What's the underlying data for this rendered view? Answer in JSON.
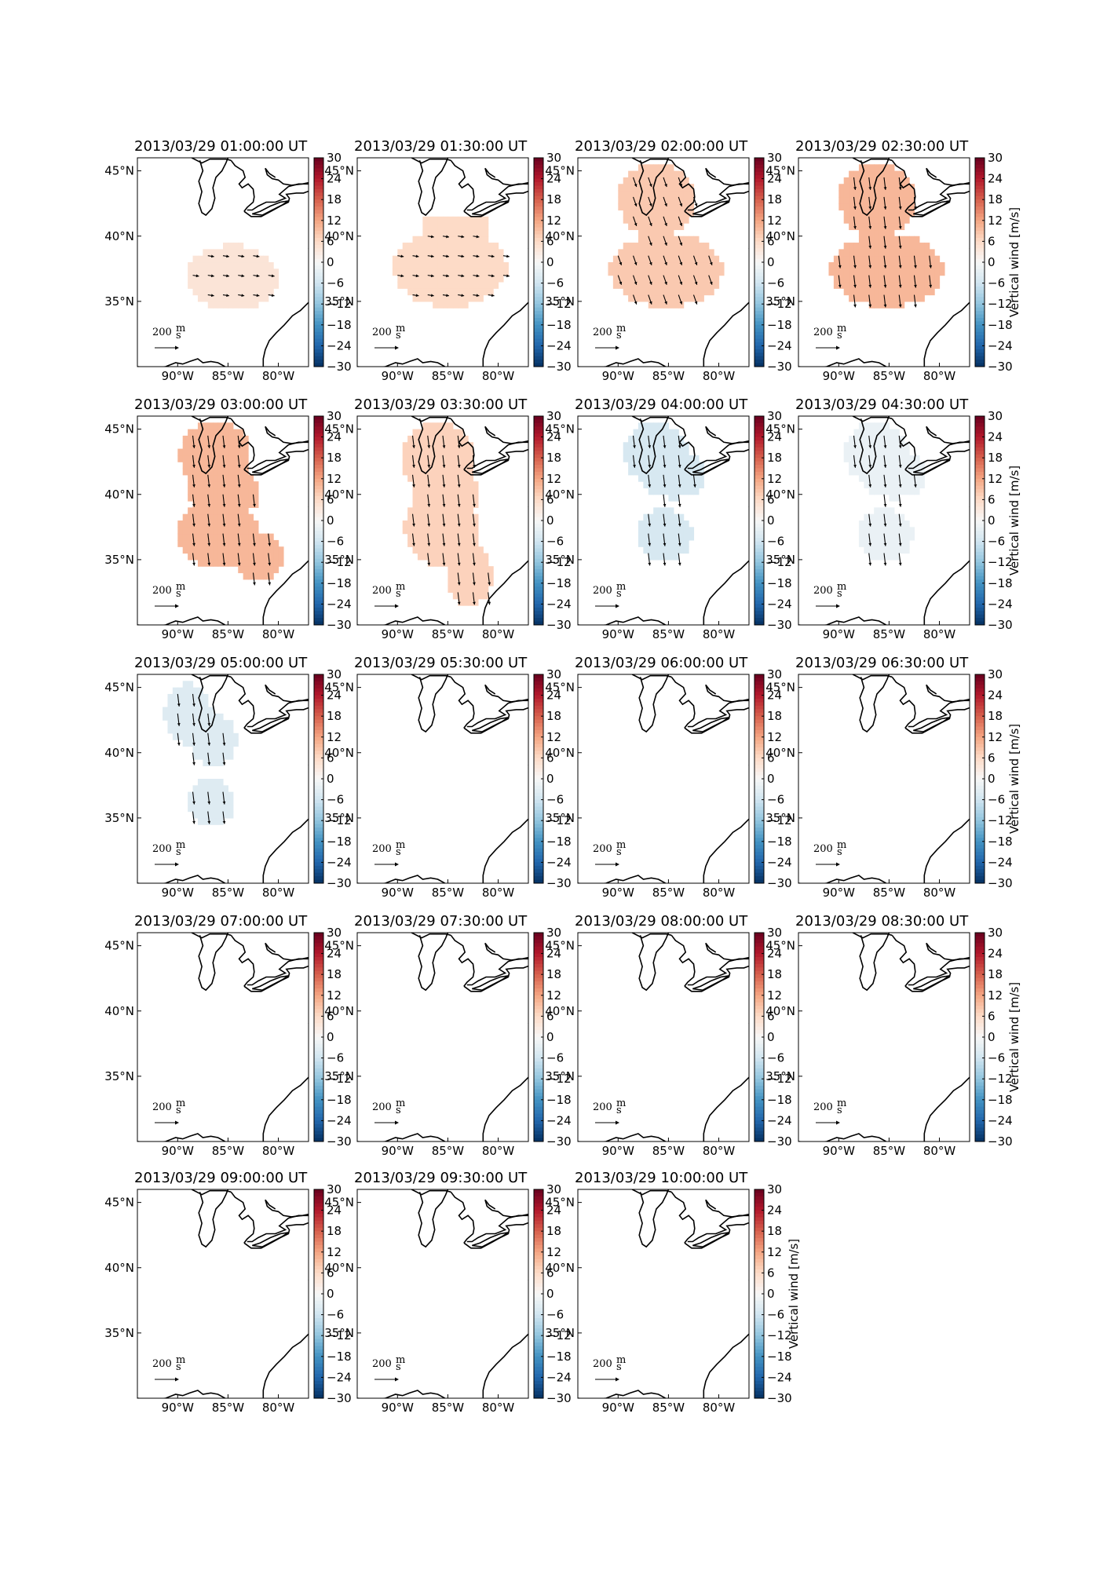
{
  "chart_data": {
    "type": "heatmap",
    "description_free": true,
    "panels": [
      {
        "title": "2013/03/29 01:00:00 UT",
        "fill_value": 4,
        "region": "south_blob_small",
        "arrows": "east",
        "arrow_len": 0.5
      },
      {
        "title": "2013/03/29 01:30:00 UT",
        "fill_value": 6,
        "region": "southeast_large",
        "arrows": "east",
        "arrow_len": 0.5
      },
      {
        "title": "2013/03/29 02:00:00 UT",
        "fill_value": 8,
        "region": "two_blobs",
        "arrows": "southeast",
        "arrow_len": 0.8
      },
      {
        "title": "2013/03/29 02:30:00 UT",
        "fill_value": 10,
        "region": "two_blobs",
        "arrows": "south",
        "arrow_len": 1.0
      },
      {
        "title": "2013/03/29 03:00:00 UT",
        "fill_value": 10,
        "region": "hourglass",
        "arrows": "south",
        "arrow_len": 1.0
      },
      {
        "title": "2013/03/29 03:30:00 UT",
        "fill_value": 7,
        "region": "hourglass_tall",
        "arrows": "south",
        "arrow_len": 1.0
      },
      {
        "title": "2013/03/29 04:00:00 UT",
        "fill_value": -5,
        "region": "west_column",
        "arrows": "south",
        "arrow_len": 1.0
      },
      {
        "title": "2013/03/29 04:30:00 UT",
        "fill_value": -2,
        "region": "west_column",
        "arrows": "south",
        "arrow_len": 1.0
      },
      {
        "title": "2013/03/29 05:00:00 UT",
        "fill_value": -4,
        "region": "west_column_small",
        "arrows": "south",
        "arrow_len": 1.0
      },
      {
        "title": "2013/03/29 05:30:00 UT",
        "fill_value": null
      },
      {
        "title": "2013/03/29 06:00:00 UT",
        "fill_value": null
      },
      {
        "title": "2013/03/29 06:30:00 UT",
        "fill_value": null
      },
      {
        "title": "2013/03/29 07:00:00 UT",
        "fill_value": null
      },
      {
        "title": "2013/03/29 07:30:00 UT",
        "fill_value": null
      },
      {
        "title": "2013/03/29 08:00:00 UT",
        "fill_value": null
      },
      {
        "title": "2013/03/29 08:30:00 UT",
        "fill_value": null
      },
      {
        "title": "2013/03/29 09:00:00 UT",
        "fill_value": null
      },
      {
        "title": "2013/03/29 09:30:00 UT",
        "fill_value": null
      },
      {
        "title": "2013/03/29 10:00:00 UT",
        "fill_value": null
      }
    ],
    "x_ticks": [
      "90°W",
      "85°W",
      "80°W"
    ],
    "y_ticks": [
      "45°N",
      "40°N",
      "35°N"
    ],
    "colorbar": {
      "label": "Vertical wind [m/s]",
      "ticks": [
        "30",
        "24",
        "18",
        "12",
        "6",
        "0",
        "−6",
        "−12",
        "−18",
        "−24",
        "−30"
      ],
      "range": [
        -30,
        30
      ],
      "colormap": "RdBu_r"
    },
    "scale_label": "200 m/s",
    "scale_text_num": "200",
    "scale_text_unit_top": "m",
    "scale_text_unit_bottom": "s",
    "lon_range": [
      -94,
      -77
    ],
    "lat_range": [
      30,
      46
    ],
    "grid": false
  }
}
